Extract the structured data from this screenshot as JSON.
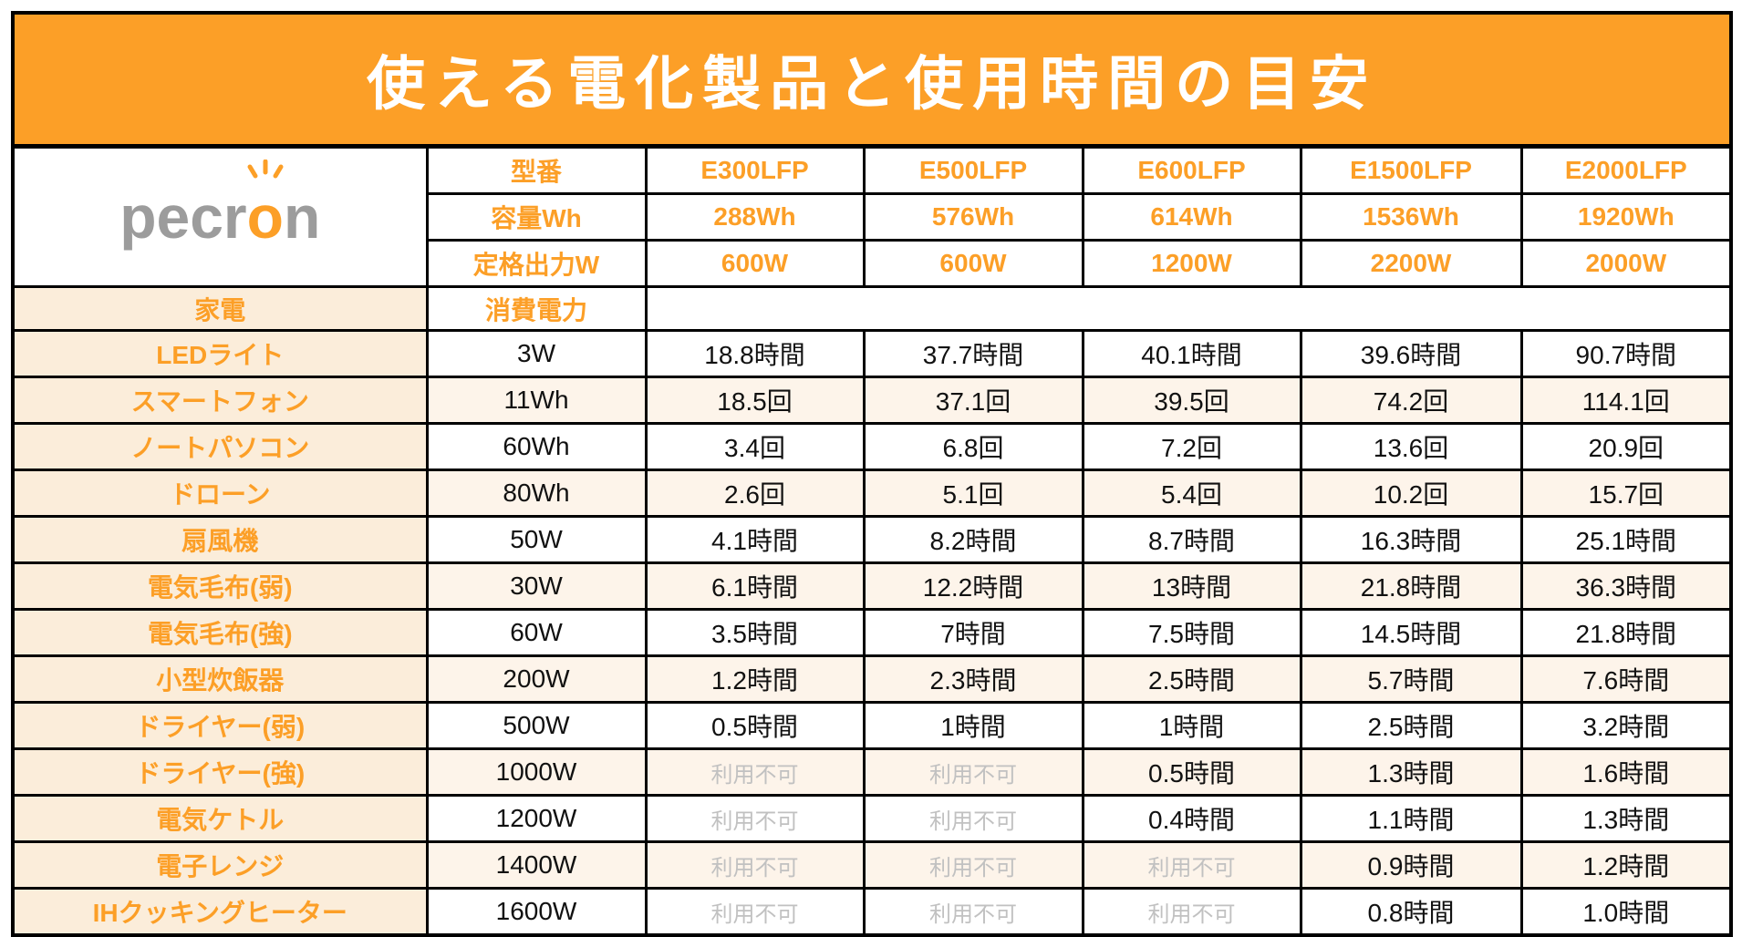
{
  "title": "使える電化製品と使用時間の目安",
  "brand": {
    "logo_part1": "pecr",
    "logo_o": "o",
    "logo_part2": "n"
  },
  "colors": {
    "accent": "#FC9F27",
    "cream": "#FBEDDA",
    "stripe": "#FDF4EA",
    "na_gray": "#C1C1C1",
    "logo_gray": "#9C9C9C",
    "title_text": "#FFFFFF",
    "border": "#000000"
  },
  "header": {
    "model_label": "型番",
    "capacity_label": "容量Wh",
    "output_label": "定格出力W",
    "appliance_label": "家電",
    "consumption_label": "消費電力",
    "models": [
      {
        "name": "E300LFP",
        "capacity": "288Wh",
        "output": "600W"
      },
      {
        "name": "E500LFP",
        "capacity": "576Wh",
        "output": "600W"
      },
      {
        "name": "E600LFP",
        "capacity": "614Wh",
        "output": "1200W"
      },
      {
        "name": "E1500LFP",
        "capacity": "1536Wh",
        "output": "2200W"
      },
      {
        "name": "E2000LFP",
        "capacity": "1920Wh",
        "output": "2000W"
      }
    ]
  },
  "unavailable_label": "利用不可",
  "rows": [
    {
      "appliance": "LEDライト",
      "consumption": "3W",
      "values": [
        "18.8時間",
        "37.7時間",
        "40.1時間",
        "39.6時間",
        "90.7時間"
      ]
    },
    {
      "appliance": "スマートフォン",
      "consumption": "11Wh",
      "values": [
        "18.5回",
        "37.1回",
        "39.5回",
        "74.2回",
        "114.1回"
      ]
    },
    {
      "appliance": "ノートパソコン",
      "consumption": "60Wh",
      "values": [
        "3.4回",
        "6.8回",
        "7.2回",
        "13.6回",
        "20.9回"
      ]
    },
    {
      "appliance": "ドローン",
      "consumption": "80Wh",
      "values": [
        "2.6回",
        "5.1回",
        "5.4回",
        "10.2回",
        "15.7回"
      ]
    },
    {
      "appliance": "扇風機",
      "consumption": "50W",
      "values": [
        "4.1時間",
        "8.2時間",
        "8.7時間",
        "16.3時間",
        "25.1時間"
      ]
    },
    {
      "appliance": "電気毛布(弱)",
      "consumption": "30W",
      "values": [
        "6.1時間",
        "12.2時間",
        "13時間",
        "21.8時間",
        "36.3時間"
      ]
    },
    {
      "appliance": "電気毛布(強)",
      "consumption": "60W",
      "values": [
        "3.5時間",
        "7時間",
        "7.5時間",
        "14.5時間",
        "21.8時間"
      ]
    },
    {
      "appliance": "小型炊飯器",
      "consumption": "200W",
      "values": [
        "1.2時間",
        "2.3時間",
        "2.5時間",
        "5.7時間",
        "7.6時間"
      ]
    },
    {
      "appliance": "ドライヤー(弱)",
      "consumption": "500W",
      "values": [
        "0.5時間",
        "1時間",
        "1時間",
        "2.5時間",
        "3.2時間"
      ]
    },
    {
      "appliance": "ドライヤー(強)",
      "consumption": "1000W",
      "values": [
        "利用不可",
        "利用不可",
        "0.5時間",
        "1.3時間",
        "1.6時間"
      ]
    },
    {
      "appliance": "電気ケトル",
      "consumption": "1200W",
      "values": [
        "利用不可",
        "利用不可",
        "0.4時間",
        "1.1時間",
        "1.3時間"
      ]
    },
    {
      "appliance": "電子レンジ",
      "consumption": "1400W",
      "values": [
        "利用不可",
        "利用不可",
        "利用不可",
        "0.9時間",
        "1.2時間"
      ]
    },
    {
      "appliance": "IHクッキングヒーター",
      "consumption": "1600W",
      "values": [
        "利用不可",
        "利用不可",
        "利用不可",
        "0.8時間",
        "1.0時間"
      ]
    }
  ]
}
